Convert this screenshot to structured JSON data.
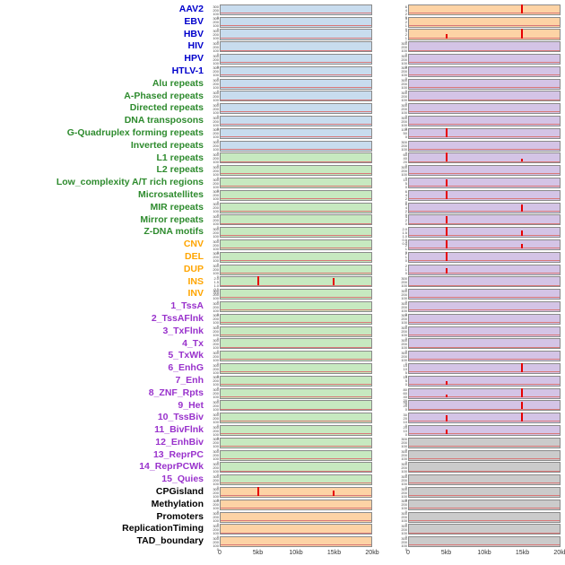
{
  "palette": {
    "label_colors": {
      "virus": "#0000CC",
      "repeat": "#2E8B2E",
      "sv": "#FFA500",
      "chromatin": "#9932CC",
      "other": "#000000"
    },
    "panel_colors": {
      "blue": "#C8DCEE",
      "green": "#C7E9C0",
      "orange": "#FDD3A5",
      "purple": "#D4C4E6",
      "gray": "#CBCBCB"
    },
    "spike_color": "#E60000",
    "baseline_color": "#D87878",
    "panel_border": "#8A8A8A",
    "tick_text": "#444444",
    "axis_text": "#333333"
  },
  "chart_data": {
    "type": "line",
    "layout": "small_multiples",
    "description": "44 genomic feature tracks, two panels per track; mostly flat red baseline with red enrichment spikes at ~5kb and ~15kb",
    "x_ticks": [
      "0",
      "5kb",
      "10kb",
      "15kb",
      "20kb"
    ],
    "x_tick_pos": [
      0,
      0.25,
      0.5,
      0.75,
      1
    ],
    "x_range_kb": [
      0,
      20
    ],
    "default_yticks": [
      "300",
      "200",
      "100",
      "0"
    ],
    "rows": [
      {
        "label": "AAV2",
        "group": "virus",
        "left": {
          "bg": "blue"
        },
        "right": {
          "bg": "orange",
          "yticks": [
            "6",
            "4",
            "2",
            "0"
          ],
          "spikes": [
            {
              "x_kb": 15,
              "rel_h": 1
            }
          ]
        }
      },
      {
        "label": "EBV",
        "group": "virus",
        "left": {
          "bg": "blue"
        },
        "right": {
          "bg": "orange",
          "yticks": [
            "3",
            "2",
            "1",
            "0"
          ]
        }
      },
      {
        "label": "HBV",
        "group": "virus",
        "left": {
          "bg": "blue"
        },
        "right": {
          "bg": "orange",
          "yticks": [
            "3",
            "2",
            "1",
            "0"
          ],
          "spikes": [
            {
              "x_kb": 5,
              "rel_h": 0.45
            },
            {
              "x_kb": 15,
              "rel_h": 1
            }
          ]
        }
      },
      {
        "label": "HIV",
        "group": "virus",
        "left": {
          "bg": "blue"
        },
        "right": {
          "bg": "purple"
        }
      },
      {
        "label": "HPV",
        "group": "virus",
        "left": {
          "bg": "blue"
        },
        "right": {
          "bg": "purple"
        }
      },
      {
        "label": "HTLV-1",
        "group": "virus",
        "left": {
          "bg": "blue"
        },
        "right": {
          "bg": "purple"
        }
      },
      {
        "label": "Alu repeats",
        "group": "repeat",
        "left": {
          "bg": "blue"
        },
        "right": {
          "bg": "purple"
        }
      },
      {
        "label": "A-Phased repeats",
        "group": "repeat",
        "left": {
          "bg": "blue"
        },
        "right": {
          "bg": "purple"
        }
      },
      {
        "label": "Directed repeats",
        "group": "repeat",
        "left": {
          "bg": "blue"
        },
        "right": {
          "bg": "purple"
        }
      },
      {
        "label": "DNA transposons",
        "group": "repeat",
        "left": {
          "bg": "blue"
        },
        "right": {
          "bg": "purple"
        }
      },
      {
        "label": "G-Quadruplex forming repeats",
        "group": "repeat",
        "left": {
          "bg": "blue"
        },
        "right": {
          "bg": "purple",
          "yticks": [
            "100",
            "50",
            "0"
          ],
          "spikes": [
            {
              "x_kb": 5,
              "rel_h": 1
            }
          ]
        }
      },
      {
        "label": "Inverted repeats",
        "group": "repeat",
        "left": {
          "bg": "blue"
        },
        "right": {
          "bg": "purple"
        }
      },
      {
        "label": "L1 repeats",
        "group": "repeat",
        "left": {
          "bg": "green"
        },
        "right": {
          "bg": "purple",
          "yticks": [
            "60",
            "40",
            "20",
            "0"
          ],
          "spikes": [
            {
              "x_kb": 5,
              "rel_h": 1
            },
            {
              "x_kb": 15,
              "rel_h": 0.35
            }
          ]
        }
      },
      {
        "label": "L2 repeats",
        "group": "repeat",
        "left": {
          "bg": "green"
        },
        "right": {
          "bg": "purple"
        }
      },
      {
        "label": "Low_complexity A/T rich regions",
        "group": "repeat",
        "left": {
          "bg": "green"
        },
        "right": {
          "bg": "purple",
          "yticks": [
            "10",
            "5",
            "0"
          ],
          "spikes": [
            {
              "x_kb": 5,
              "rel_h": 0.8
            }
          ]
        }
      },
      {
        "label": "Microsatellites",
        "group": "repeat",
        "left": {
          "bg": "green"
        },
        "right": {
          "bg": "purple",
          "yticks": [
            "6",
            "4",
            "2",
            "0"
          ],
          "spikes": [
            {
              "x_kb": 5,
              "rel_h": 0.85
            }
          ]
        }
      },
      {
        "label": "MIR repeats",
        "group": "repeat",
        "left": {
          "bg": "green"
        },
        "right": {
          "bg": "purple",
          "yticks": [
            "6",
            "4",
            "2",
            "0"
          ],
          "spikes": [
            {
              "x_kb": 15,
              "rel_h": 0.75
            }
          ]
        }
      },
      {
        "label": "Mirror repeats",
        "group": "repeat",
        "left": {
          "bg": "green"
        },
        "right": {
          "bg": "purple",
          "yticks": [
            "4",
            "2",
            "0"
          ],
          "spikes": [
            {
              "x_kb": 5,
              "rel_h": 0.85
            }
          ]
        }
      },
      {
        "label": "Z-DNA motifs",
        "group": "repeat",
        "left": {
          "bg": "green"
        },
        "right": {
          "bg": "purple",
          "yticks": [
            "2.0",
            "1.5",
            "1.0",
            "0.5",
            "0.0"
          ],
          "spikes": [
            {
              "x_kb": 5,
              "rel_h": 1
            },
            {
              "x_kb": 15,
              "rel_h": 0.6
            }
          ]
        }
      },
      {
        "label": "CNV",
        "group": "sv",
        "left": {
          "bg": "green"
        },
        "right": {
          "bg": "purple",
          "yticks": [
            "3",
            "2",
            "1",
            "0"
          ],
          "spikes": [
            {
              "x_kb": 5,
              "rel_h": 0.95
            },
            {
              "x_kb": 15,
              "rel_h": 0.5
            }
          ]
        }
      },
      {
        "label": "DEL",
        "group": "sv",
        "left": {
          "bg": "green"
        },
        "right": {
          "bg": "purple",
          "yticks": [
            "2",
            "1",
            "0"
          ],
          "spikes": [
            {
              "x_kb": 5,
              "rel_h": 1
            }
          ]
        }
      },
      {
        "label": "DUP",
        "group": "sv",
        "left": {
          "bg": "green"
        },
        "right": {
          "bg": "purple",
          "yticks": [
            "2",
            "1",
            "0"
          ],
          "spikes": [
            {
              "x_kb": 5,
              "rel_h": 0.6
            }
          ]
        }
      },
      {
        "label": "INS",
        "group": "sv",
        "left": {
          "bg": "green",
          "yticks": [
            "2.0",
            "1.5",
            "1.0",
            "0.5",
            "0.0"
          ],
          "spikes": [
            {
              "x_kb": 5,
              "rel_h": 1
            },
            {
              "x_kb": 15,
              "rel_h": 0.85
            }
          ]
        },
        "right": {
          "bg": "purple"
        }
      },
      {
        "label": "INV",
        "group": "sv",
        "left": {
          "bg": "green"
        },
        "right": {
          "bg": "purple"
        }
      },
      {
        "label": "1_TssA",
        "group": "chromatin",
        "left": {
          "bg": "green"
        },
        "right": {
          "bg": "purple"
        }
      },
      {
        "label": "2_TssAFlnk",
        "group": "chromatin",
        "left": {
          "bg": "green"
        },
        "right": {
          "bg": "purple"
        }
      },
      {
        "label": "3_TxFlnk",
        "group": "chromatin",
        "left": {
          "bg": "green"
        },
        "right": {
          "bg": "purple"
        }
      },
      {
        "label": "4_Tx",
        "group": "chromatin",
        "left": {
          "bg": "green"
        },
        "right": {
          "bg": "purple"
        }
      },
      {
        "label": "5_TxWk",
        "group": "chromatin",
        "left": {
          "bg": "green"
        },
        "right": {
          "bg": "purple"
        }
      },
      {
        "label": "6_EnhG",
        "group": "chromatin",
        "left": {
          "bg": "green"
        },
        "right": {
          "bg": "purple",
          "yticks": [
            "15",
            "10",
            "5",
            "0"
          ],
          "spikes": [
            {
              "x_kb": 15,
              "rel_h": 1
            }
          ]
        }
      },
      {
        "label": "7_Enh",
        "group": "chromatin",
        "left": {
          "bg": "green"
        },
        "right": {
          "bg": "purple",
          "yticks": [
            "10",
            "5",
            "0"
          ],
          "spikes": [
            {
              "x_kb": 5,
              "rel_h": 0.4
            }
          ]
        }
      },
      {
        "label": "8_ZNF_Rpts",
        "group": "chromatin",
        "left": {
          "bg": "green"
        },
        "right": {
          "bg": "purple",
          "yticks": [
            "80",
            "60",
            "40",
            "20",
            "0"
          ],
          "spikes": [
            {
              "x_kb": 5,
              "rel_h": 0.3
            },
            {
              "x_kb": 15,
              "rel_h": 1
            }
          ]
        }
      },
      {
        "label": "9_Het",
        "group": "chromatin",
        "left": {
          "bg": "green"
        },
        "right": {
          "bg": "purple",
          "yticks": [
            "40",
            "20",
            "0"
          ],
          "spikes": [
            {
              "x_kb": 15,
              "rel_h": 0.8
            }
          ]
        }
      },
      {
        "label": "10_TssBiv",
        "group": "chromatin",
        "left": {
          "bg": "green"
        },
        "right": {
          "bg": "purple",
          "yticks": [
            "30",
            "20",
            "10",
            "0"
          ],
          "spikes": [
            {
              "x_kb": 5,
              "rel_h": 0.7
            },
            {
              "x_kb": 15,
              "rel_h": 1
            }
          ]
        }
      },
      {
        "label": "11_BivFlnk",
        "group": "chromatin",
        "left": {
          "bg": "green"
        },
        "right": {
          "bg": "purple",
          "yticks": [
            "20",
            "10",
            "0"
          ],
          "spikes": [
            {
              "x_kb": 5,
              "rel_h": 0.5
            }
          ]
        }
      },
      {
        "label": "12_EnhBiv",
        "group": "chromatin",
        "left": {
          "bg": "green"
        },
        "right": {
          "bg": "gray"
        }
      },
      {
        "label": "13_ReprPC",
        "group": "chromatin",
        "left": {
          "bg": "green"
        },
        "right": {
          "bg": "gray"
        }
      },
      {
        "label": "14_ReprPCWk",
        "group": "chromatin",
        "left": {
          "bg": "green"
        },
        "right": {
          "bg": "gray"
        }
      },
      {
        "label": "15_Quies",
        "group": "chromatin",
        "left": {
          "bg": "green"
        },
        "right": {
          "bg": "gray"
        }
      },
      {
        "label": "CPGisland",
        "group": "other",
        "left": {
          "bg": "orange",
          "spikes": [
            {
              "x_kb": 5,
              "rel_h": 1
            },
            {
              "x_kb": 15,
              "rel_h": 0.6
            }
          ]
        },
        "right": {
          "bg": "gray"
        }
      },
      {
        "label": "Methylation",
        "group": "other",
        "left": {
          "bg": "orange"
        },
        "right": {
          "bg": "gray"
        }
      },
      {
        "label": "Promoters",
        "group": "other",
        "left": {
          "bg": "orange"
        },
        "right": {
          "bg": "gray"
        }
      },
      {
        "label": "ReplicationTiming",
        "group": "other",
        "left": {
          "bg": "orange"
        },
        "right": {
          "bg": "gray"
        }
      },
      {
        "label": "TAD_boundary",
        "group": "other",
        "left": {
          "bg": "orange"
        },
        "right": {
          "bg": "gray"
        }
      }
    ]
  }
}
